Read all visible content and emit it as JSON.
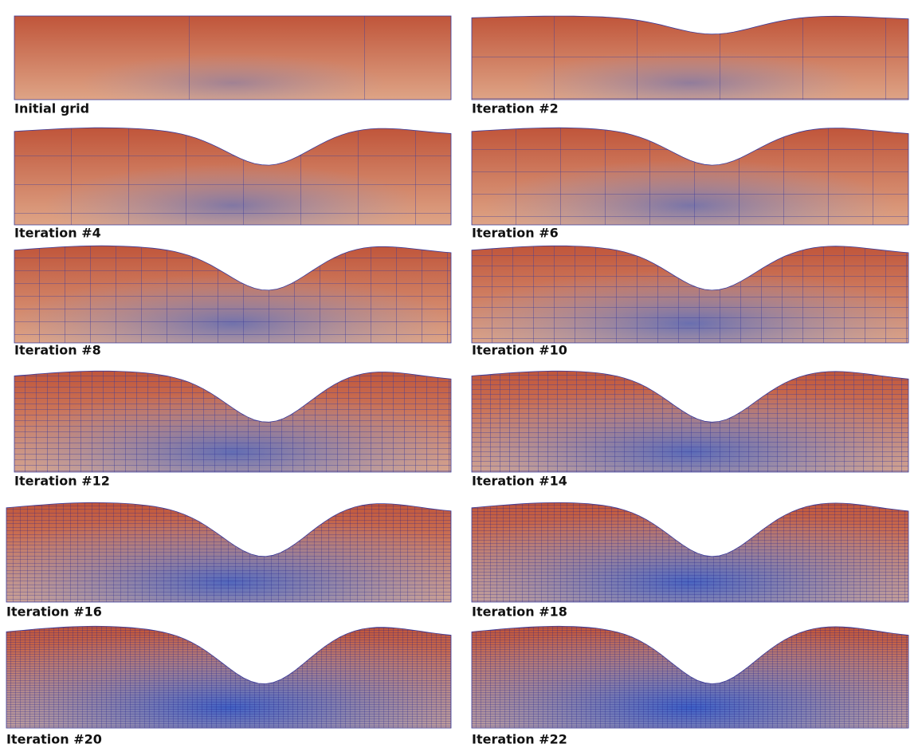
{
  "panels": [
    {
      "label": "Initial grid"
    },
    {
      "label": "Iteration #2"
    },
    {
      "label": "Iteration #4"
    },
    {
      "label": "Iteration #6"
    },
    {
      "label": "Iteration #8"
    },
    {
      "label": "Iteration #10"
    },
    {
      "label": "Iteration #12"
    },
    {
      "label": "Iteration #14"
    },
    {
      "label": "Iteration #16"
    },
    {
      "label": "Iteration #18"
    },
    {
      "label": "Iteration #20"
    },
    {
      "label": "Iteration #22"
    }
  ]
}
